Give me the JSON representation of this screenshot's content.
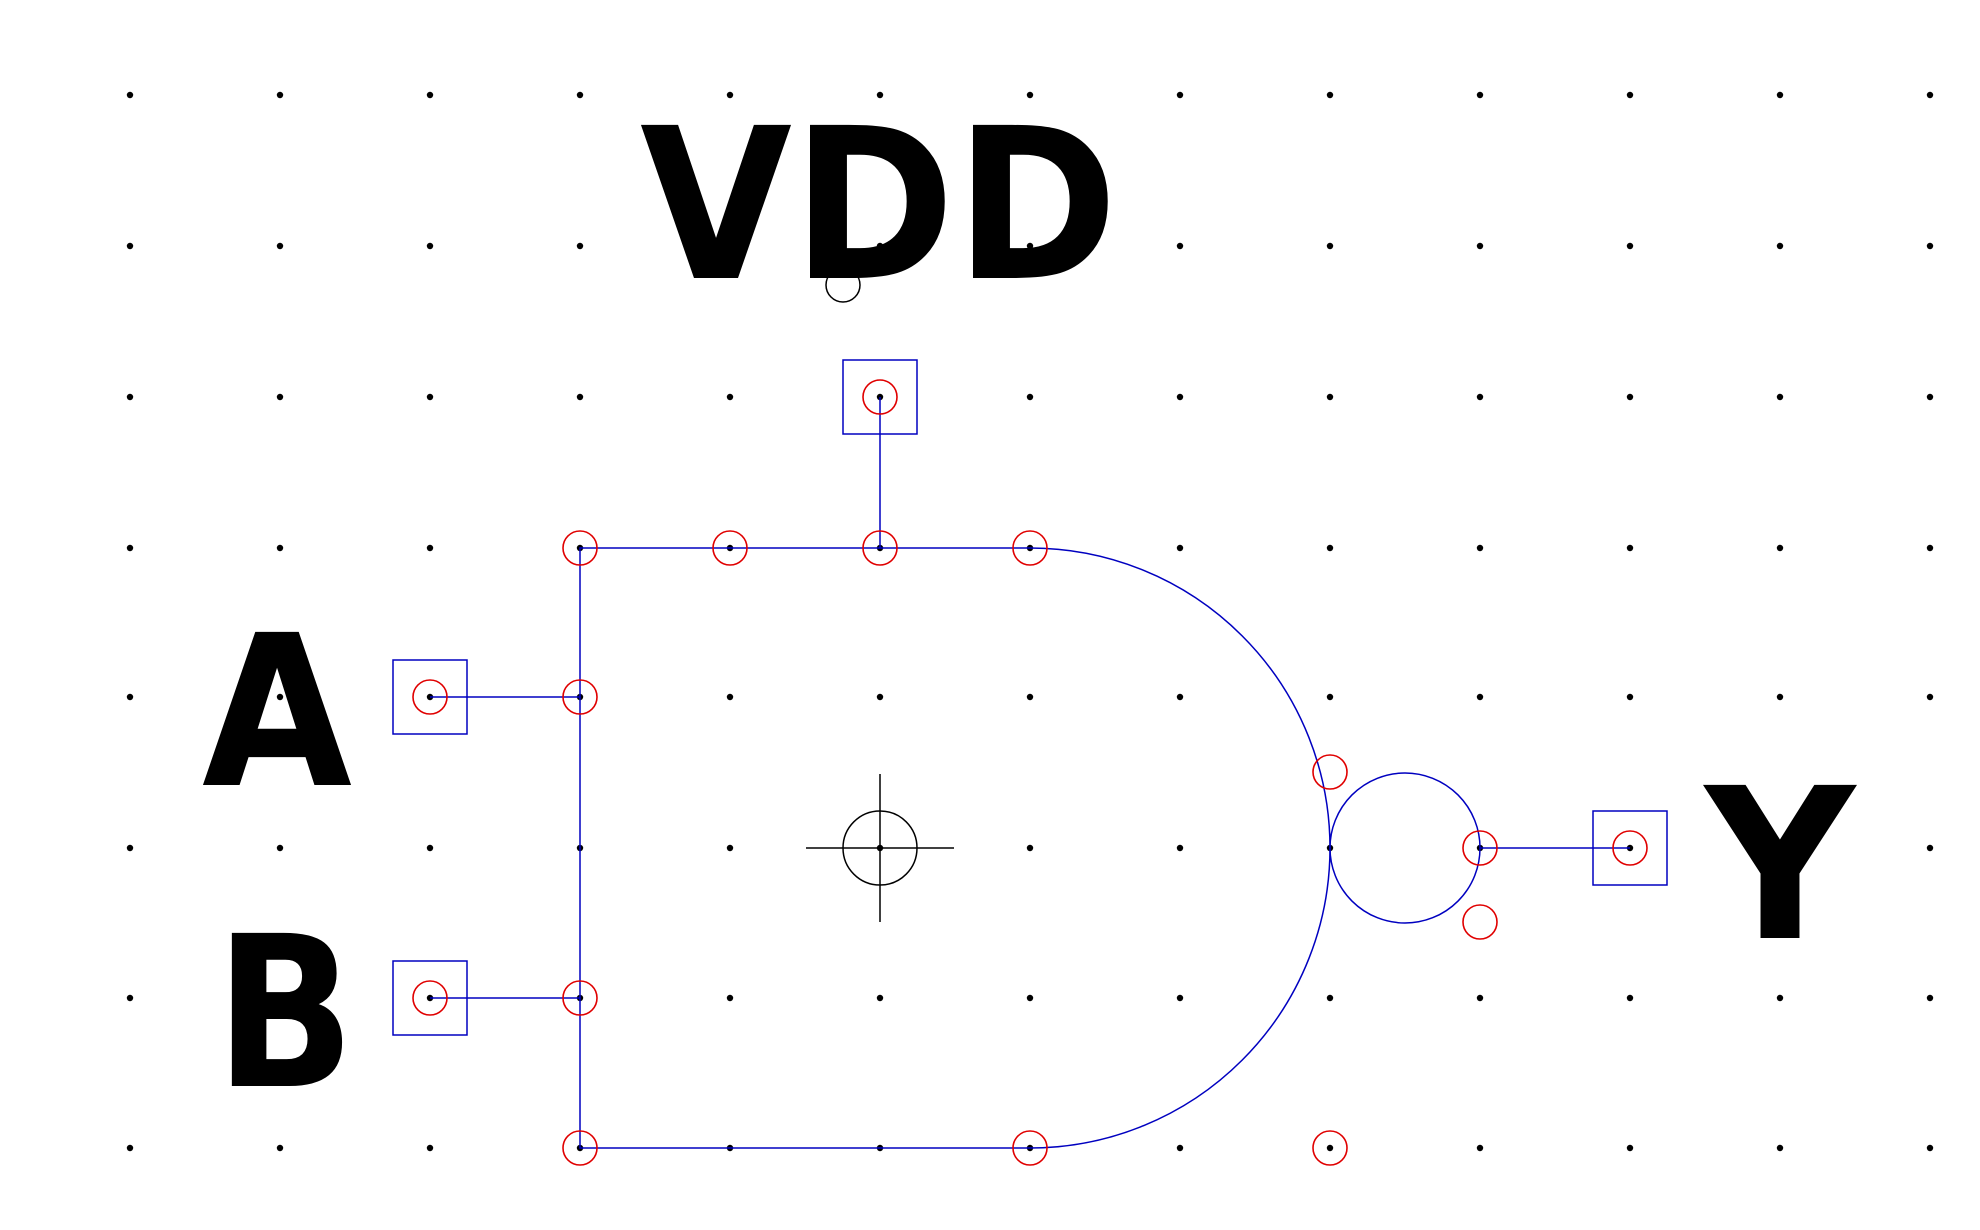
{
  "labels": {
    "vdd": "VDD",
    "a": "A",
    "b": "B",
    "y": "Y"
  },
  "colors": {
    "background": "#ffffff",
    "grid_dot": "#000000",
    "wire": "#0000c0",
    "connection_marker": "#e00000",
    "origin_marker": "#000000",
    "label_text": "#000000"
  },
  "icons": {
    "origin": "crosshair-icon",
    "connection_point": "circle-marker-icon",
    "pin": "square-pin-icon"
  }
}
